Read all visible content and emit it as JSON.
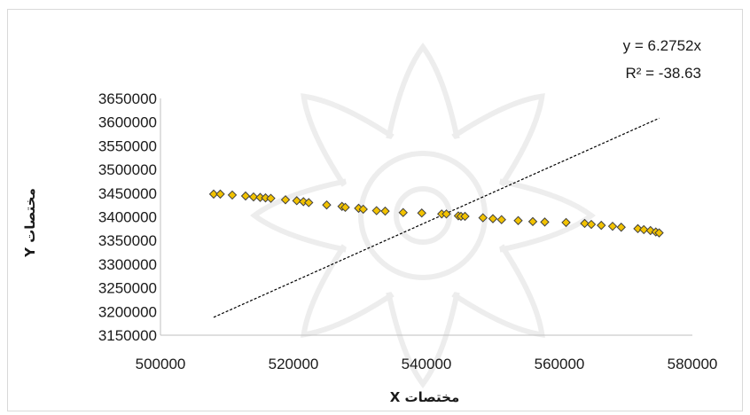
{
  "chart_data": {
    "type": "scatter",
    "xlabel": "مختصات X",
    "ylabel": "مختصات Y",
    "xlim": [
      500000,
      580000
    ],
    "ylim": [
      3150000,
      3650000
    ],
    "x_ticks": [
      "500000",
      "520000",
      "540000",
      "560000",
      "580000"
    ],
    "y_ticks": [
      "3150000",
      "3200000",
      "3250000",
      "3300000",
      "3350000",
      "3400000",
      "3450000",
      "3500000",
      "3550000",
      "3600000",
      "3650000"
    ],
    "grid": false,
    "legend": "none",
    "colors": {
      "marker_fill": "#f2c200",
      "marker_stroke": "#404040",
      "trendline": "#000000"
    },
    "series": [
      {
        "marker": "diamond",
        "points": [
          [
            508000,
            3448000
          ],
          [
            509000,
            3448000
          ],
          [
            510800,
            3446000
          ],
          [
            512800,
            3444000
          ],
          [
            514000,
            3442000
          ],
          [
            515000,
            3441000
          ],
          [
            515800,
            3440000
          ],
          [
            516600,
            3439000
          ],
          [
            518800,
            3436000
          ],
          [
            520500,
            3434000
          ],
          [
            521500,
            3432000
          ],
          [
            522300,
            3430000
          ],
          [
            525000,
            3425000
          ],
          [
            527300,
            3422000
          ],
          [
            527800,
            3420000
          ],
          [
            529800,
            3418000
          ],
          [
            530500,
            3416000
          ],
          [
            532500,
            3413000
          ],
          [
            533800,
            3412000
          ],
          [
            536500,
            3409000
          ],
          [
            539300,
            3408000
          ],
          [
            542300,
            3406000
          ],
          [
            543000,
            3406000
          ],
          [
            544800,
            3402000
          ],
          [
            545200,
            3401000
          ],
          [
            545800,
            3401000
          ],
          [
            548500,
            3398000
          ],
          [
            550000,
            3396000
          ],
          [
            551300,
            3394000
          ],
          [
            553800,
            3392000
          ],
          [
            556000,
            3390000
          ],
          [
            557800,
            3389000
          ],
          [
            561000,
            3388000
          ],
          [
            563800,
            3386000
          ],
          [
            564800,
            3384000
          ],
          [
            566300,
            3382000
          ],
          [
            568000,
            3380000
          ],
          [
            569300,
            3378000
          ],
          [
            571800,
            3375000
          ],
          [
            572700,
            3373000
          ],
          [
            573700,
            3371000
          ],
          [
            574500,
            3368000
          ],
          [
            575000,
            3366000
          ]
        ]
      }
    ],
    "trendline": {
      "type": "linear-through-origin",
      "slope": 6.2752,
      "x_range": [
        508000,
        575000
      ]
    },
    "annotations": {
      "equation": "y = 6.2752x",
      "r_squared": "R² = -38.63"
    }
  }
}
